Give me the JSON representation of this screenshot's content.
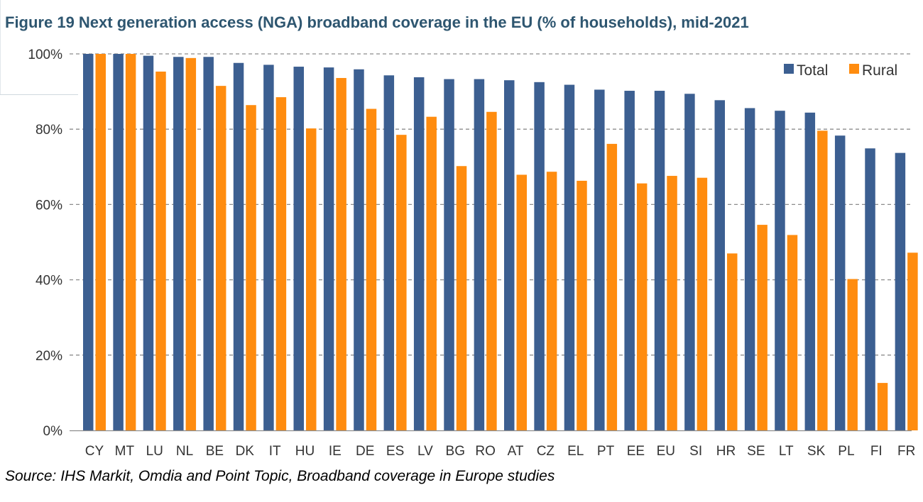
{
  "figure": {
    "title": "Figure 19 Next generation access (NGA) broadband coverage in the EU (% of households), mid-2021",
    "source": "Source: IHS Markit, Omdia and Point Topic, Broadband coverage in Europe studies"
  },
  "chart_data": {
    "type": "bar",
    "title": "Figure 19 Next generation access (NGA) broadband coverage in the EU (% of households), mid-2021",
    "xlabel": "",
    "ylabel": "",
    "ylim": [
      0,
      100
    ],
    "y_ticks": [
      "0%",
      "20%",
      "40%",
      "60%",
      "80%",
      "100%"
    ],
    "grid": true,
    "legend_position": "top-right",
    "categories": [
      "CY",
      "MT",
      "LU",
      "NL",
      "BE",
      "DK",
      "IT",
      "HU",
      "IE",
      "DE",
      "ES",
      "LV",
      "BG",
      "RO",
      "AT",
      "CZ",
      "EL",
      "PT",
      "EE",
      "EU",
      "SI",
      "HR",
      "SE",
      "LT",
      "SK",
      "PL",
      "FI",
      "FR"
    ],
    "series": [
      {
        "name": "Total",
        "color": "#3c5f91",
        "values": [
          100,
          100,
          99.5,
          99.2,
          99.2,
          97.6,
          97.1,
          96.6,
          96.4,
          95.9,
          94.3,
          93.8,
          93.3,
          93.3,
          93.0,
          92.5,
          91.8,
          90.5,
          90.2,
          90.2,
          89.4,
          87.7,
          85.6,
          84.9,
          84.4,
          78.3,
          74.9,
          73.7
        ]
      },
      {
        "name": "Rural",
        "color": "#ff8c0f",
        "values": [
          100,
          100,
          95.3,
          98.9,
          91.5,
          86.4,
          88.5,
          80.2,
          93.6,
          85.4,
          78.5,
          83.3,
          70.2,
          84.6,
          67.9,
          68.7,
          66.3,
          76.1,
          65.6,
          67.6,
          67.1,
          47.0,
          54.6,
          51.9,
          79.6,
          40.2,
          12.6,
          47.2
        ]
      }
    ]
  }
}
